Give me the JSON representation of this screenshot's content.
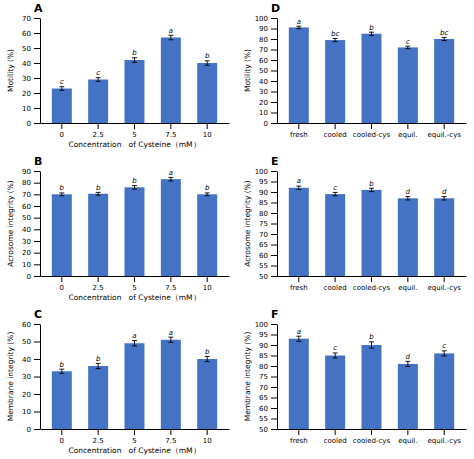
{
  "chart_data": [
    {
      "type": "bar",
      "title": "A",
      "ylabel": "Motility (%)",
      "xlabel": "Concentration   of Cysteine（mM）",
      "categories": [
        "0",
        "2.5",
        "5",
        "7.5",
        "10"
      ],
      "values": [
        23,
        29,
        42,
        57,
        40
      ],
      "errors": [
        1.2,
        1.2,
        1.5,
        1.5,
        1.5
      ],
      "annotations": [
        "c",
        "c",
        "b",
        "a",
        "b"
      ],
      "color": "#4472C4",
      "ylim": [
        0,
        70
      ],
      "yticks": [
        0,
        10,
        20,
        30,
        40,
        50,
        60,
        70
      ]
    },
    {
      "type": "bar",
      "title": "B",
      "ylabel": "Acrosome integrity (%)",
      "xlabel": "Concentration   of Cysteine（mM）",
      "categories": [
        "0",
        "2.5",
        "5",
        "7.5",
        "10"
      ],
      "values": [
        70,
        70.5,
        76,
        83,
        70
      ],
      "errors": [
        1.2,
        1.2,
        1.5,
        1.5,
        1.2
      ],
      "annotations": [
        "b",
        "b",
        "b",
        "a",
        "b"
      ],
      "color": "#4472C4",
      "ylim": [
        0,
        90
      ],
      "yticks": [
        0,
        10,
        20,
        30,
        40,
        50,
        60,
        70,
        80,
        90
      ]
    },
    {
      "type": "bar",
      "title": "C",
      "ylabel": "Membrane integrity (%)",
      "xlabel": "Concentration   of Cysteine（mM）",
      "categories": [
        "0",
        "2.5",
        "5",
        "7.5",
        "10"
      ],
      "values": [
        33,
        36,
        49,
        51,
        40
      ],
      "errors": [
        1.2,
        1.5,
        1.5,
        1.5,
        1.5
      ],
      "annotations": [
        "b",
        "b",
        "a",
        "a",
        "b"
      ],
      "color": "#4472C4",
      "ylim": [
        0,
        60
      ],
      "yticks": [
        0,
        10,
        20,
        30,
        40,
        50,
        60
      ]
    },
    {
      "type": "bar",
      "title": "D",
      "ylabel": "Motility (%)",
      "categories": [
        "fresh",
        "cooled",
        "cooled-cys",
        "equil.",
        "equil.-cys"
      ],
      "values": [
        91,
        79,
        85,
        72,
        80
      ],
      "errors": [
        1.2,
        1.5,
        1.5,
        1.2,
        1.5
      ],
      "annotations": [
        "a",
        "bc",
        "b",
        "c",
        "bc"
      ],
      "color": "#4472C4",
      "ylim": [
        0,
        100
      ],
      "yticks": [
        0,
        10,
        20,
        30,
        40,
        50,
        60,
        70,
        80,
        90,
        100
      ]
    },
    {
      "type": "bar",
      "title": "E",
      "ylabel": "Acrosome integrity (%)",
      "categories": [
        "fresh",
        "cooled",
        "cooled-cys",
        "equil.",
        "equil.-cys"
      ],
      "values": [
        92,
        89,
        91,
        87,
        87
      ],
      "errors": [
        0.8,
        0.8,
        0.8,
        0.8,
        0.8
      ],
      "annotations": [
        "a",
        "c",
        "b",
        "d",
        "d"
      ],
      "color": "#4472C4",
      "ylim": [
        50,
        100
      ],
      "yticks": [
        50,
        55,
        60,
        65,
        70,
        75,
        80,
        85,
        90,
        95,
        100
      ]
    },
    {
      "type": "bar",
      "title": "F",
      "ylabel": "Membrane integrity (%)",
      "categories": [
        "fresh",
        "cooled",
        "cooled-cys",
        "equil.",
        "equil.-cys"
      ],
      "values": [
        93,
        85,
        90,
        81,
        86
      ],
      "errors": [
        1.2,
        1.2,
        1.5,
        1.2,
        1.2
      ],
      "annotations": [
        "a",
        "c",
        "b",
        "d",
        "c"
      ],
      "color": "#4472C4",
      "ylim": [
        50,
        100
      ],
      "yticks": [
        50,
        55,
        60,
        65,
        70,
        75,
        80,
        85,
        90,
        95,
        100
      ]
    }
  ]
}
